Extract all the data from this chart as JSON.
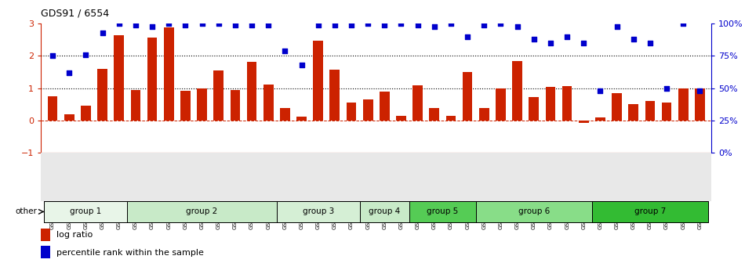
{
  "title": "GDS91 / 6554",
  "samples": [
    "GSM1555",
    "GSM1556",
    "GSM1557",
    "GSM1558",
    "GSM1564",
    "GSM1550",
    "GSM1565",
    "GSM1566",
    "GSM1567",
    "GSM1568",
    "GSM1574",
    "GSM1575",
    "GSM1576",
    "GSM1577",
    "GSM1578",
    "GSM1584",
    "GSM1585",
    "GSM1586",
    "GSM1587",
    "GSM1588",
    "GSM1594",
    "GSM1595",
    "GSM1596",
    "GSM1597",
    "GSM1598",
    "GSM1604",
    "GSM1605",
    "GSM1606",
    "GSM1607",
    "GSM1608",
    "GSM1614",
    "GSM1615",
    "GSM1616",
    "GSM1617",
    "GSM1618",
    "GSM1624",
    "GSM1625",
    "GSM1626",
    "GSM1627",
    "GSM1628"
  ],
  "log_ratio": [
    0.75,
    0.18,
    0.45,
    1.6,
    2.65,
    0.95,
    2.57,
    2.88,
    0.92,
    1.0,
    1.55,
    0.95,
    1.82,
    1.1,
    0.38,
    0.12,
    2.47,
    1.58,
    0.55,
    0.65,
    0.9,
    0.13,
    1.08,
    0.38,
    0.15,
    1.5,
    0.38,
    1.0,
    1.85,
    0.72,
    1.04,
    1.06,
    -0.07,
    0.1,
    0.85,
    0.5,
    0.6,
    0.55,
    1.0,
    1.0
  ],
  "percentile_raw": [
    75,
    62,
    76,
    93,
    100,
    99,
    98,
    100,
    99,
    100,
    100,
    99,
    99,
    99,
    79,
    68,
    99,
    99,
    99,
    100,
    99,
    100,
    99,
    98,
    100,
    90,
    99,
    100,
    98,
    88,
    85,
    90,
    85,
    48,
    98,
    88,
    85,
    50,
    100,
    48
  ],
  "ylim_left": [
    -1,
    3
  ],
  "ylim_right": [
    0,
    100
  ],
  "yticks_left": [
    -1,
    0,
    1,
    2,
    3
  ],
  "yticks_right": [
    0,
    25,
    50,
    75,
    100
  ],
  "bar_color": "#CC2200",
  "scatter_color": "#0000CC",
  "groups": [
    {
      "label": "group 1",
      "start": 0,
      "end": 4
    },
    {
      "label": "group 2",
      "start": 5,
      "end": 13
    },
    {
      "label": "group 3",
      "start": 14,
      "end": 18
    },
    {
      "label": "group 4",
      "start": 19,
      "end": 21
    },
    {
      "label": "group 5",
      "start": 22,
      "end": 25
    },
    {
      "label": "group 6",
      "start": 26,
      "end": 32
    },
    {
      "label": "group 7",
      "start": 33,
      "end": 39
    }
  ],
  "group_colors": [
    "#e8f5e8",
    "#c8eac8",
    "#d5efd5",
    "#c8eac8",
    "#55cc55",
    "#88dd88",
    "#33bb33"
  ],
  "legend_log_ratio_label": "log ratio",
  "legend_percentile_label": "percentile rank within the sample",
  "other_label": "other"
}
